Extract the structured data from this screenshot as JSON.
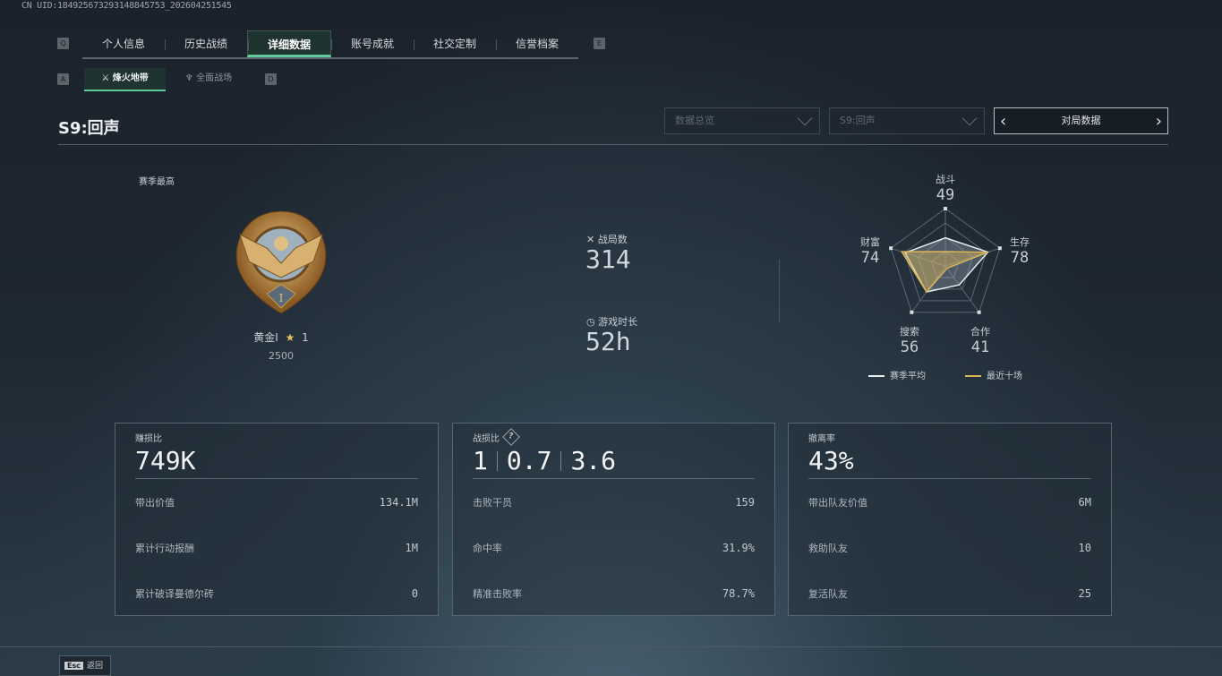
{
  "uid_text": "CN UID:1849256732931488457​53_202604251545",
  "nav": {
    "prev_key": "Q",
    "next_key": "E",
    "tabs": [
      "个人信息",
      "历史战绩",
      "详细数据",
      "账号成就",
      "社交定制",
      "信誉档案"
    ],
    "active": "详细数据"
  },
  "subnav": {
    "prev_key": "A",
    "next_key": "D",
    "tabs": [
      "烽火地带",
      "全面战场"
    ],
    "active": "烽火地带"
  },
  "season_title": "S9:回声",
  "filters": {
    "category": "数据总览",
    "season": "S9:回声",
    "mode": "对局数据"
  },
  "rank": {
    "label": "赛季最高",
    "tier": "黄金I",
    "stars": "1",
    "score": "2500"
  },
  "summary": {
    "matches_label": "战局数",
    "matches": "314",
    "playtime_label": "游戏时长",
    "playtime": "52h"
  },
  "chart_data": {
    "type": "radar",
    "axes": [
      "战斗",
      "生存",
      "合作",
      "搜索",
      "财富"
    ],
    "axis_values": [
      "49",
      "78",
      "41",
      "56",
      "74"
    ],
    "range": [
      0,
      100
    ],
    "series": [
      {
        "name": "赛季平均",
        "color": "#e8ecef",
        "values": [
          49,
          78,
          41,
          56,
          74
        ]
      },
      {
        "name": "最近十场",
        "color": "#d9b45a",
        "values": [
          25,
          77,
          5,
          56,
          80
        ]
      }
    ]
  },
  "cards": [
    {
      "title": "赚损比",
      "value": "749K",
      "rows": [
        {
          "label": "带出价值",
          "value": "134.1M"
        },
        {
          "label": "累计行动报酬",
          "value": "1M"
        },
        {
          "label": "累计破译曼德尔砖",
          "value": "0"
        }
      ]
    },
    {
      "title": "战损比",
      "values": [
        "1",
        "0.7",
        "3.6"
      ],
      "rows": [
        {
          "label": "击败干员",
          "value": "159"
        },
        {
          "label": "命中率",
          "value": "31.9%"
        },
        {
          "label": "精准击败率",
          "value": "78.7%"
        }
      ]
    },
    {
      "title": "撤离率",
      "value": "43%",
      "rows": [
        {
          "label": "带出队友价值",
          "value": "6M"
        },
        {
          "label": "救助队友",
          "value": "10"
        },
        {
          "label": "复活队友",
          "value": "25"
        }
      ]
    }
  ],
  "footer": {
    "key": "Esc",
    "label": "返回"
  },
  "colors": {
    "accent": "#5fc99a",
    "gold": "#d9b45a"
  }
}
